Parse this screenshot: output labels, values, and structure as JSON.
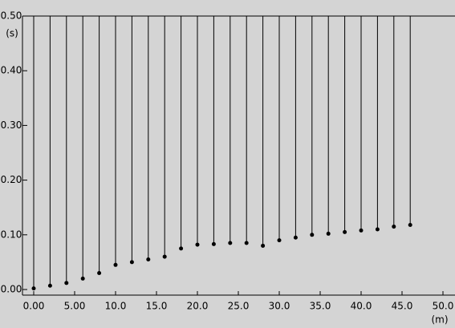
{
  "chart_data": {
    "type": "scatter",
    "x": [
      0,
      2,
      4,
      6,
      8,
      10,
      12,
      14,
      16,
      18,
      20,
      22,
      24,
      26,
      28,
      30,
      32,
      34,
      36,
      38,
      40,
      42,
      44,
      46
    ],
    "values": [
      0.002,
      0.007,
      0.012,
      0.02,
      0.03,
      0.045,
      0.05,
      0.055,
      0.06,
      0.075,
      0.082,
      0.083,
      0.085,
      0.085,
      0.08,
      0.09,
      0.095,
      0.1,
      0.102,
      0.105,
      0.108,
      0.11,
      0.115,
      0.118
    ],
    "color": "#000000",
    "xlabel": "(m)",
    "ylabel": "(s)",
    "xlim": [
      0,
      50
    ],
    "ylim": [
      0,
      0.5
    ],
    "xticks": [
      {
        "value": 0,
        "label": "0.00"
      },
      {
        "value": 5,
        "label": "5.00"
      },
      {
        "value": 10,
        "label": "10.0"
      },
      {
        "value": 15,
        "label": "15.0"
      },
      {
        "value": 20,
        "label": "20.0"
      },
      {
        "value": 25,
        "label": "25.0"
      },
      {
        "value": 30,
        "label": "30.0"
      },
      {
        "value": 35,
        "label": "35.0"
      },
      {
        "value": 40,
        "label": "40.0"
      },
      {
        "value": 45,
        "label": "45.0"
      },
      {
        "value": 50,
        "label": "50.0"
      }
    ],
    "yticks": [
      {
        "value": 0,
        "label": "0.00"
      },
      {
        "value": 0.1,
        "label": "0.10"
      },
      {
        "value": 0.2,
        "label": "0.20"
      },
      {
        "value": 0.3,
        "label": "0.30"
      },
      {
        "value": 0.4,
        "label": "0.40"
      },
      {
        "value": 0.5,
        "label": "0.50"
      }
    ]
  }
}
